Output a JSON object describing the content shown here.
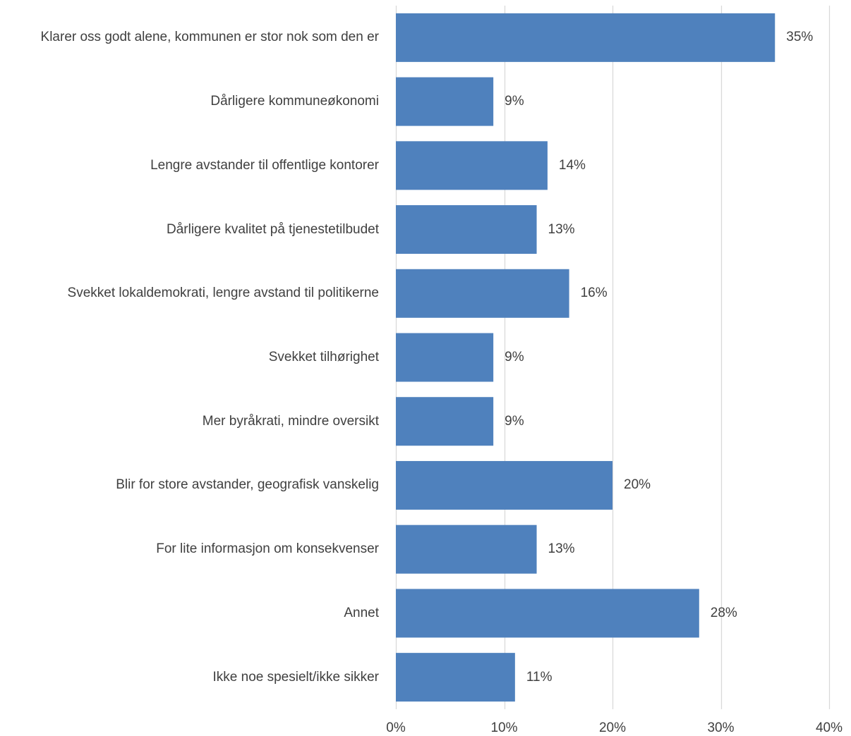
{
  "chart_data": {
    "type": "bar",
    "orientation": "horizontal",
    "title": "",
    "xlabel": "",
    "ylabel": "",
    "categories": [
      "Klarer oss godt alene, kommunen er stor nok som den er",
      "Dårligere kommuneøkonomi",
      "Lengre avstander til offentlige kontorer",
      "Dårligere kvalitet på tjenestetilbudet",
      "Svekket lokaldemokrati, lengre avstand til politikerne",
      "Svekket tilhørighet",
      "Mer byråkrati, mindre oversikt",
      "Blir for store avstander, geografisk vanskelig",
      "For lite informasjon om konsekvenser",
      "Annet",
      "Ikke noe spesielt/ikke sikker"
    ],
    "values": [
      35,
      9,
      14,
      13,
      16,
      9,
      9,
      20,
      13,
      28,
      11
    ],
    "data_labels": [
      "35%",
      "9%",
      "14%",
      "13%",
      "16%",
      "9%",
      "9%",
      "20%",
      "13%",
      "28%",
      "11%"
    ],
    "xlim": [
      0,
      40
    ],
    "xticks": [
      0,
      10,
      20,
      30,
      40
    ],
    "xtick_labels": [
      "0%",
      "10%",
      "20%",
      "30%",
      "40%"
    ],
    "grid": "vertical",
    "legend": "none",
    "bar_color": "#4f81bd",
    "grid_color": "#d9d9d9"
  }
}
